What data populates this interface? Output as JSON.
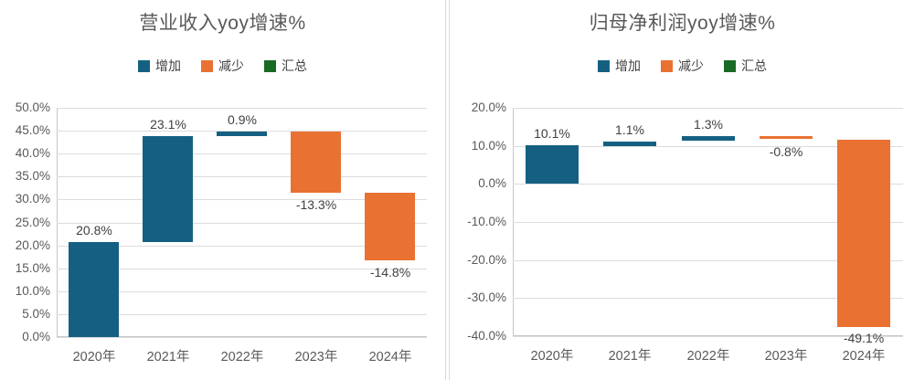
{
  "colors": {
    "increase": "#156082",
    "decrease": "#E97132",
    "total": "#196B24",
    "gridline": "#dcdcdc",
    "axis_text": "#595959",
    "data_label_text": "#404040"
  },
  "chart_data": [
    {
      "type": "bar",
      "subtype": "waterfall",
      "title": "营业收入yoy增速%",
      "categories": [
        "2020年",
        "2021年",
        "2022年",
        "2023年",
        "2024年"
      ],
      "values": [
        20.8,
        23.1,
        0.9,
        -13.3,
        -14.8
      ],
      "data_labels": [
        "20.8%",
        "23.1%",
        "0.9%",
        "-13.3%",
        "-14.8%"
      ],
      "cumulative": [
        [
          0,
          20.8
        ],
        [
          20.8,
          43.9
        ],
        [
          43.9,
          44.8
        ],
        [
          31.5,
          44.8
        ],
        [
          16.7,
          31.5
        ]
      ],
      "ylim": [
        0,
        50
      ],
      "ytick_step": 5,
      "ytick_labels": [
        "50.0%",
        "45.0%",
        "40.0%",
        "35.0%",
        "30.0%",
        "25.0%",
        "20.0%",
        "15.0%",
        "10.0%",
        "5.0%",
        "0.0%"
      ],
      "grid": true,
      "legend_position": "top",
      "legend": [
        {
          "label": "增加",
          "color": "#156082"
        },
        {
          "label": "减少",
          "color": "#E97132"
        },
        {
          "label": "汇总",
          "color": "#196B24"
        }
      ],
      "xlabel": "",
      "ylabel": ""
    },
    {
      "type": "bar",
      "subtype": "waterfall",
      "title": "归母净利润yoy增速%",
      "categories": [
        "2020年",
        "2021年",
        "2022年",
        "2023年",
        "2024年"
      ],
      "values": [
        10.1,
        1.1,
        1.3,
        -0.8,
        -49.1
      ],
      "data_labels": [
        "10.1%",
        "1.1%",
        "1.3%",
        "-0.8%",
        "-49.1%"
      ],
      "cumulative": [
        [
          0,
          10.1
        ],
        [
          10.1,
          11.2
        ],
        [
          11.2,
          12.5
        ],
        [
          11.7,
          12.5
        ],
        [
          -37.4,
          11.7
        ]
      ],
      "ylim": [
        -40,
        20
      ],
      "ytick_step": 10,
      "ytick_labels": [
        "20.0%",
        "10.0%",
        "0.0%",
        "-10.0%",
        "-20.0%",
        "-30.0%",
        "-40.0%"
      ],
      "grid": true,
      "legend_position": "top",
      "legend": [
        {
          "label": "增加",
          "color": "#156082"
        },
        {
          "label": "减少",
          "color": "#E97132"
        },
        {
          "label": "汇总",
          "color": "#196B24"
        }
      ],
      "xlabel": "",
      "ylabel": ""
    }
  ]
}
